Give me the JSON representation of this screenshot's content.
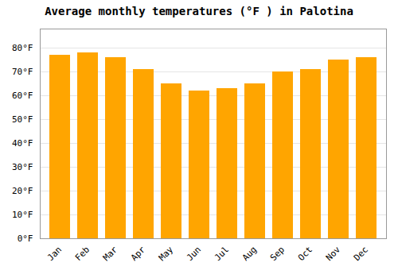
{
  "chart_data": {
    "type": "bar",
    "title": "Average monthly temperatures (°F ) in Palotina",
    "categories": [
      "Jan",
      "Feb",
      "Mar",
      "Apr",
      "May",
      "Jun",
      "Jul",
      "Aug",
      "Sep",
      "Oct",
      "Nov",
      "Dec"
    ],
    "values": [
      77,
      78,
      76,
      71,
      65,
      62,
      63,
      65,
      70,
      71,
      75,
      76
    ],
    "color": "#FFA500",
    "ylim": [
      0,
      88
    ],
    "yticks": [
      {
        "value": 0,
        "label": "0°F"
      },
      {
        "value": 10,
        "label": "10°F"
      },
      {
        "value": 20,
        "label": "20°F"
      },
      {
        "value": 30,
        "label": "30°F"
      },
      {
        "value": 40,
        "label": "40°F"
      },
      {
        "value": 50,
        "label": "50°F"
      },
      {
        "value": 60,
        "label": "60°F"
      },
      {
        "value": 70,
        "label": "70°F"
      },
      {
        "value": 80,
        "label": "80°F"
      }
    ],
    "grid": true
  }
}
